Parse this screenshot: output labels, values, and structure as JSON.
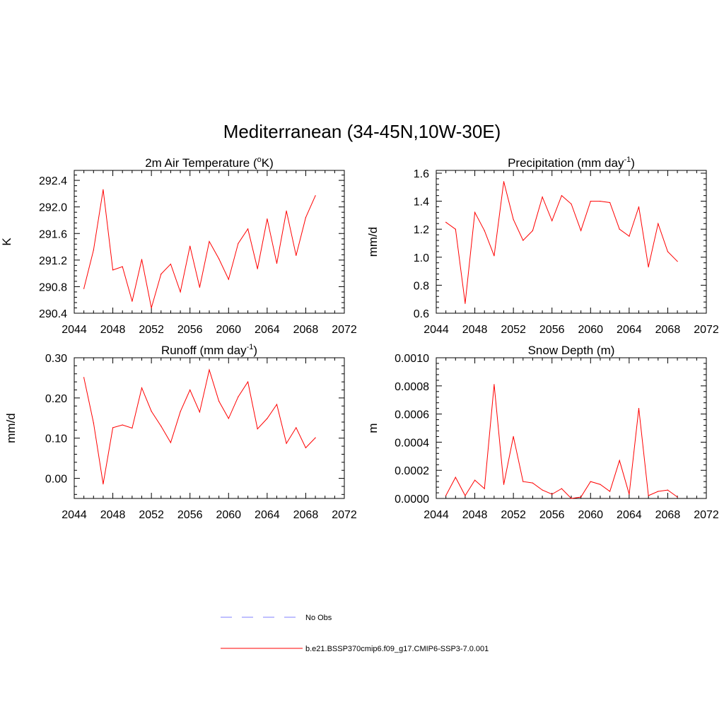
{
  "page_title": "Mediterranean (34-45N,10W-30E)",
  "line_color": "#ff0000",
  "obs_color": "#9a9aff",
  "legend": {
    "obs_label": "No Obs",
    "model_label": "b.e21.BSSP370cmip6.f09_g17.CMIP6-SSP3-7.0.001"
  },
  "chart_data": [
    {
      "type": "line",
      "title": "2m Air Temperature (",
      "title_sup": "o",
      "title_end": "K)",
      "ylabel": "K",
      "xlim": [
        2044,
        2072
      ],
      "ylim": [
        290.4,
        292.55
      ],
      "xticks": [
        "2044",
        "2048",
        "2052",
        "2056",
        "2060",
        "2064",
        "2068",
        "2072"
      ],
      "yticks": [
        "290.4",
        "290.8",
        "291.2",
        "291.6",
        "292.0",
        "292.4"
      ],
      "series": [
        {
          "x": [
            2045,
            2046,
            2047,
            2048,
            2049,
            2050,
            2051,
            2052,
            2053,
            2054,
            2055,
            2056,
            2057,
            2058,
            2059,
            2060,
            2061,
            2062,
            2063,
            2064,
            2065,
            2066,
            2067,
            2068,
            2069
          ],
          "y": [
            290.77,
            291.35,
            292.26,
            291.05,
            291.1,
            290.58,
            291.21,
            290.48,
            290.99,
            291.14,
            290.72,
            291.41,
            290.79,
            291.48,
            291.22,
            290.91,
            291.45,
            291.67,
            291.07,
            291.82,
            291.15,
            291.94,
            291.27,
            291.84,
            292.17
          ]
        }
      ]
    },
    {
      "type": "line",
      "title": "Precipitation (mm day",
      "title_sup": "-1",
      "title_end": ")",
      "ylabel": "mm/d",
      "xlim": [
        2044,
        2072
      ],
      "ylim": [
        0.6,
        1.62
      ],
      "xticks": [
        "2044",
        "2048",
        "2052",
        "2056",
        "2060",
        "2064",
        "2068",
        "2072"
      ],
      "yticks": [
        "0.6",
        "0.8",
        "1.0",
        "1.2",
        "1.4",
        "1.6"
      ],
      "series": [
        {
          "x": [
            2045,
            2046,
            2047,
            2048,
            2049,
            2050,
            2051,
            2052,
            2053,
            2054,
            2055,
            2056,
            2057,
            2058,
            2059,
            2060,
            2061,
            2062,
            2063,
            2064,
            2065,
            2066,
            2067,
            2068,
            2069
          ],
          "y": [
            1.25,
            1.2,
            0.67,
            1.32,
            1.19,
            1.01,
            1.54,
            1.27,
            1.12,
            1.19,
            1.43,
            1.26,
            1.44,
            1.38,
            1.19,
            1.4,
            1.4,
            1.39,
            1.2,
            1.15,
            1.36,
            0.93,
            1.24,
            1.04,
            0.97
          ]
        }
      ]
    },
    {
      "type": "line",
      "title": "Runoff (mm day",
      "title_sup": "-1",
      "title_end": ")",
      "ylabel": "mm/d",
      "xlim": [
        2044,
        2072
      ],
      "ylim": [
        -0.05,
        0.3
      ],
      "xticks": [
        "2044",
        "2048",
        "2052",
        "2056",
        "2060",
        "2064",
        "2068",
        "2072"
      ],
      "yticks": [
        "0.00",
        "0.10",
        "0.20",
        "0.30"
      ],
      "ytick_values": [
        0.0,
        0.1,
        0.2,
        0.3
      ],
      "series": [
        {
          "x": [
            2045,
            2046,
            2047,
            2048,
            2049,
            2050,
            2051,
            2052,
            2053,
            2054,
            2055,
            2056,
            2057,
            2058,
            2059,
            2060,
            2061,
            2062,
            2063,
            2064,
            2065,
            2066,
            2067,
            2068,
            2069
          ],
          "y": [
            0.251,
            0.138,
            -0.014,
            0.126,
            0.133,
            0.125,
            0.225,
            0.167,
            0.13,
            0.089,
            0.166,
            0.22,
            0.165,
            0.27,
            0.192,
            0.149,
            0.203,
            0.24,
            0.123,
            0.149,
            0.184,
            0.087,
            0.126,
            0.076,
            0.101
          ]
        }
      ]
    },
    {
      "type": "line",
      "title": "Snow Depth (m)",
      "title_sup": "",
      "title_end": "",
      "ylabel": "m",
      "xlim": [
        2044,
        2072
      ],
      "ylim": [
        0.0,
        0.001
      ],
      "xticks": [
        "2044",
        "2048",
        "2052",
        "2056",
        "2060",
        "2064",
        "2068",
        "2072"
      ],
      "yticks": [
        "0.0000",
        "0.0002",
        "0.0004",
        "0.0006",
        "0.0008",
        "0.0010"
      ],
      "series": [
        {
          "x": [
            2045,
            2046,
            2047,
            2048,
            2049,
            2050,
            2051,
            2052,
            2053,
            2054,
            2055,
            2056,
            2057,
            2058,
            2059,
            2060,
            2061,
            2062,
            2063,
            2064,
            2065,
            2066,
            2067,
            2068,
            2069
          ],
          "y": [
            2e-05,
            0.00015,
            2e-05,
            0.00013,
            7e-05,
            0.00081,
            0.0001,
            0.00044,
            0.00012,
            0.00011,
            6e-05,
            3e-05,
            7e-05,
            0.0,
            1e-05,
            0.00012,
            0.0001,
            5e-05,
            0.00027,
            3e-05,
            0.00064,
            2e-05,
            5e-05,
            6e-05,
            1e-05
          ]
        }
      ]
    }
  ]
}
